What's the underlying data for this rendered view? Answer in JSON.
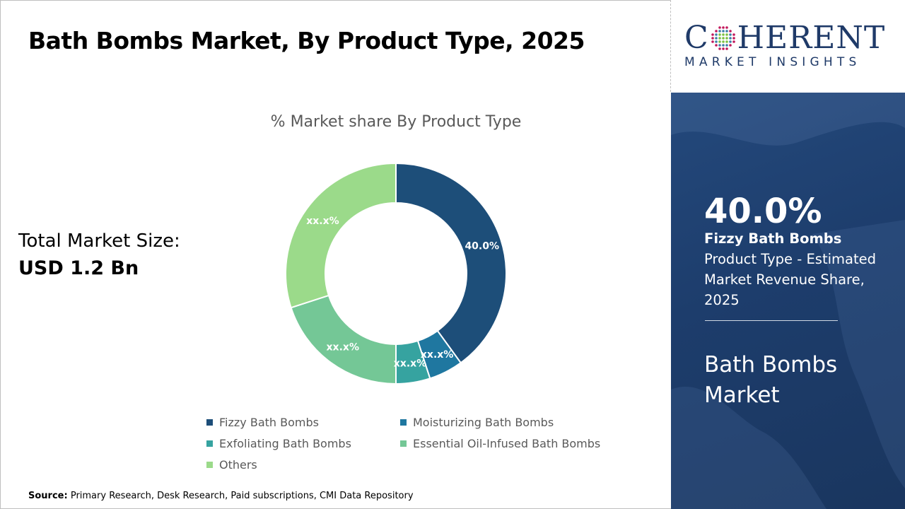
{
  "header": {
    "title": "Bath Bombs Market, By Product Type, 2025"
  },
  "total_market": {
    "label": "Total Market Size:",
    "value": "USD 1.2 Bn"
  },
  "source": {
    "label": "Source:",
    "text": "Primary Research, Desk Research, Paid subscriptions, CMI Data Repository"
  },
  "logo": {
    "main": "COHERENT",
    "sub": "MARKET INSIGHTS"
  },
  "highlight": {
    "percent": "40.0%",
    "segment": "Fizzy Bath Bombs",
    "description": "Product Type - Estimated Market Revenue Share, 2025",
    "market_name": "Bath Bombs Market"
  },
  "chart_data": {
    "type": "pie",
    "variant": "donut",
    "title": "% Market share By Product Type",
    "categories": [
      "Fizzy Bath Bombs",
      "Moisturizing Bath Bombs",
      "Exfoliating Bath Bombs",
      "Essential Oil-Infused Bath Bombs",
      "Others"
    ],
    "values": [
      40.0,
      5.0,
      5.0,
      20.0,
      30.0
    ],
    "data_labels": [
      "40.0%",
      "xx.x%",
      "xx.x%",
      "xx.x%",
      "xx.x%"
    ],
    "colors": [
      "#1d4e79",
      "#1f77a0",
      "#36a3a0",
      "#74c796",
      "#9bda8a"
    ],
    "legend_position": "bottom"
  }
}
